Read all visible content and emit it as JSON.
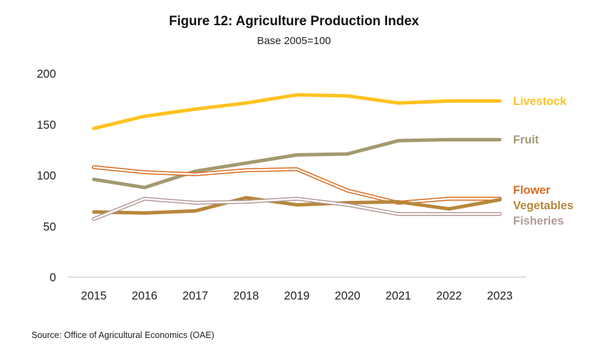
{
  "chart_data": {
    "type": "line",
    "title": "Figure 12:  Agriculture Production Index",
    "subtitle": "Base 2005=100",
    "xlabel": "",
    "ylabel": "",
    "x": [
      "2015",
      "2016",
      "2017",
      "2018",
      "2019",
      "2020",
      "2021",
      "2022",
      "2023"
    ],
    "ylim": [
      0,
      200
    ],
    "yticks": [
      0,
      50,
      100,
      150,
      200
    ],
    "grid": false,
    "legend": "direct labels at right end of lines",
    "series": [
      {
        "name": "Livestock",
        "color": "#FFC21F",
        "style": "thick",
        "values": [
          146,
          158,
          165,
          171,
          179,
          178,
          171,
          173,
          173
        ]
      },
      {
        "name": "Fruit",
        "color": "#A39A6E",
        "style": "thick",
        "values": [
          96,
          88,
          104,
          112,
          120,
          121,
          134,
          135,
          135
        ]
      },
      {
        "name": "Flower",
        "color": "#D86A1E",
        "style": "double",
        "values": [
          108,
          103,
          101,
          105,
          106,
          85,
          73,
          77,
          77
        ]
      },
      {
        "name": "Vegetables",
        "color": "#B7873A",
        "style": "thick",
        "values": [
          64,
          63,
          65,
          78,
          71,
          73,
          74,
          67,
          76
        ]
      },
      {
        "name": "Fisheries",
        "color": "#B39A97",
        "style": "double",
        "values": [
          57,
          77,
          73,
          74,
          77,
          71,
          62,
          62,
          62
        ]
      }
    ]
  },
  "source": "Source:  Office of Agricultural Economics (OAE)"
}
